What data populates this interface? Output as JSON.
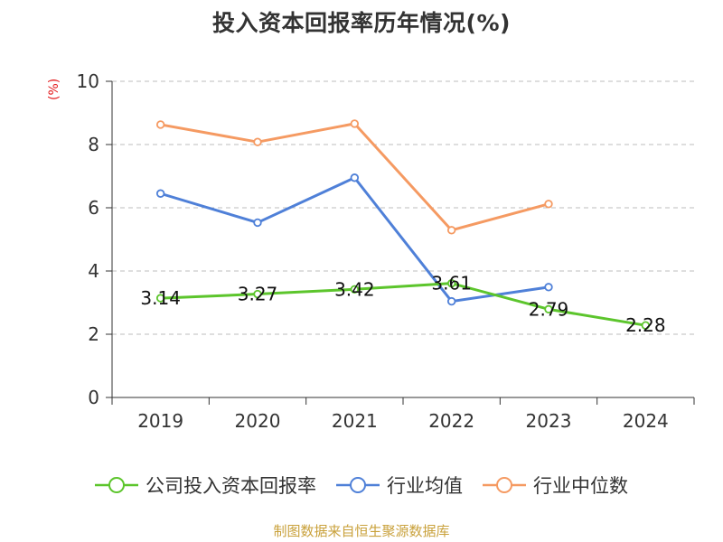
{
  "title": "投入资本回报率历年情况(%)",
  "unit_label": "(%)",
  "source": "制图数据来自恒生聚源数据库",
  "chart_data": {
    "type": "line",
    "categories": [
      "2019",
      "2020",
      "2021",
      "2022",
      "2023",
      "2024"
    ],
    "ylim": [
      0,
      10
    ],
    "yticks": [
      0,
      2,
      4,
      6,
      8,
      10
    ],
    "grid": true,
    "legend_position": "bottom",
    "series": [
      {
        "name": "公司投入资本回报率",
        "color": "#5cc52c",
        "values": [
          3.14,
          3.27,
          3.42,
          3.61,
          2.79,
          2.28
        ],
        "show_labels": true
      },
      {
        "name": "行业均值",
        "color": "#4f80d8",
        "values": [
          6.45,
          5.53,
          6.95,
          3.04,
          3.49,
          null
        ],
        "show_labels": false
      },
      {
        "name": "行业中位数",
        "color": "#f59a62",
        "values": [
          8.63,
          8.08,
          8.66,
          5.29,
          6.12,
          null
        ],
        "show_labels": false
      }
    ]
  }
}
